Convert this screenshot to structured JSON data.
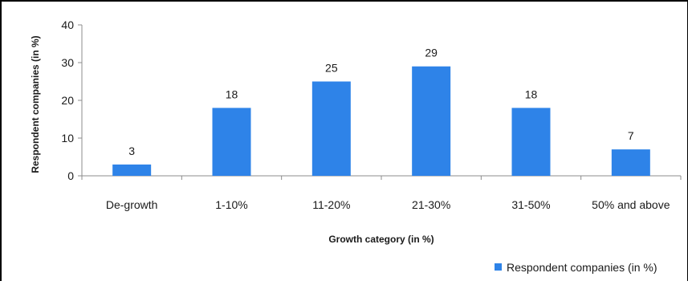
{
  "chart_data": {
    "type": "bar",
    "title": "",
    "xlabel": "Growth category (in %)",
    "ylabel": "Respondent companies (in %)",
    "categories": [
      "De-growth",
      "1-10%",
      "11-20%",
      "21-30%",
      "31-50%",
      "50% and above"
    ],
    "series": [
      {
        "name": "Respondent companies (in %)",
        "values": [
          3,
          18,
          25,
          29,
          18,
          7
        ]
      }
    ],
    "ylim": [
      0,
      40
    ],
    "yticks": [
      0,
      10,
      20,
      30,
      40
    ],
    "grid": false,
    "legend_position": "bottom-right",
    "colors": {
      "bar": "#2e83e8",
      "axis": "#8c8c8c",
      "text": "#1a1a1a"
    }
  }
}
